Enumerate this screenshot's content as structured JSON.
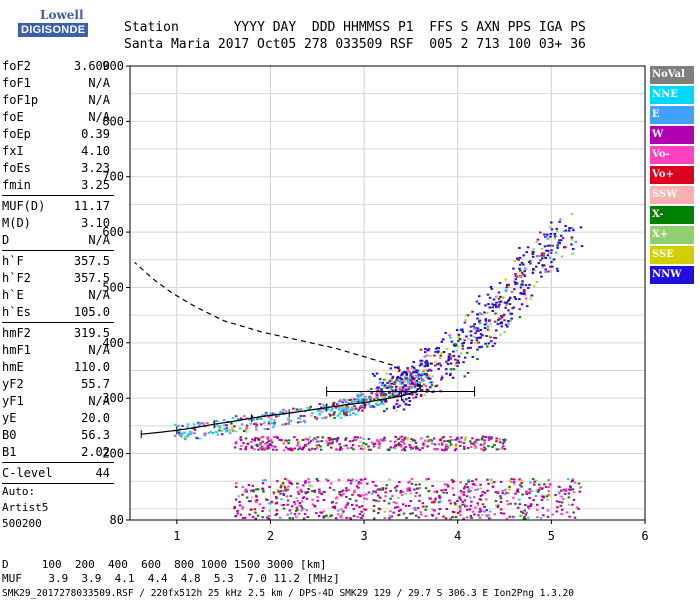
{
  "logo": {
    "line1": "Lowell",
    "line2": "DIGISONDE"
  },
  "header": {
    "cols": [
      "Station",
      "YYYY DAY",
      "DDD HHMMSS",
      "P1",
      "FFS",
      "S",
      "AXN",
      "PPS",
      "IGA",
      "PS"
    ],
    "vals": [
      "Santa Maria",
      "2017 Oct05",
      "278 033509",
      "RSF",
      "005",
      "2",
      "713",
      "100",
      "03+",
      "36"
    ]
  },
  "params": [
    {
      "name": "foF2",
      "value": "3.600"
    },
    {
      "name": "foF1",
      "value": "N/A"
    },
    {
      "name": "foF1p",
      "value": "N/A"
    },
    {
      "name": "foE",
      "value": "N/A"
    },
    {
      "name": "foEp",
      "value": "0.39"
    },
    {
      "name": "fxI",
      "value": "4.10"
    },
    {
      "name": "foEs",
      "value": "3.23"
    },
    {
      "name": "fmin",
      "value": "3.25",
      "sep": true
    },
    {
      "name": "MUF(D)",
      "value": "11.17"
    },
    {
      "name": "M(D)",
      "value": "3.10"
    },
    {
      "name": "D",
      "value": "N/A",
      "sep": true
    },
    {
      "name": "h`F",
      "value": "357.5"
    },
    {
      "name": "h`F2",
      "value": "357.5"
    },
    {
      "name": "h`E",
      "value": "N/A"
    },
    {
      "name": "h`Es",
      "value": "105.0",
      "sep": true
    },
    {
      "name": "hmF2",
      "value": "319.5"
    },
    {
      "name": "hmF1",
      "value": "N/A"
    },
    {
      "name": "hmE",
      "value": "110.0"
    },
    {
      "name": "yF2",
      "value": "55.7"
    },
    {
      "name": "yF1",
      "value": "N/A"
    },
    {
      "name": "yE",
      "value": "20.0"
    },
    {
      "name": "B0",
      "value": "56.3"
    },
    {
      "name": "B1",
      "value": "2.02",
      "sep": true
    },
    {
      "name": "C-level",
      "value": "44",
      "sep": true
    }
  ],
  "auto": {
    "l1": "Auto:",
    "l2": "Artist5",
    "l3": "500200"
  },
  "legend": [
    {
      "label": "NoVal",
      "color": "#7f7f7f"
    },
    {
      "label": "NNE",
      "color": "#00d8ff"
    },
    {
      "label": "E",
      "color": "#40a0ff"
    },
    {
      "label": "W",
      "color": "#b000b0"
    },
    {
      "label": "Vo-",
      "color": "#ff40c0"
    },
    {
      "label": "Vo+",
      "color": "#e00020"
    },
    {
      "label": "SSW",
      "color": "#f8b0b0"
    },
    {
      "label": "X-",
      "color": "#008000"
    },
    {
      "label": "X+",
      "color": "#90d070"
    },
    {
      "label": "SSE",
      "color": "#d0d000"
    },
    {
      "label": "NNW",
      "color": "#2010e0"
    }
  ],
  "bottom": {
    "d_line": "D     100  200  400  600  800 1000 1500 3000 [km]",
    "muf_line": "MUF    3.9  3.9  4.1  4.4  4.8  5.3  7.0 11.2 [MHz]",
    "footer": "SMK29_2017278033509.RSF / 220fx512h 25 kHz 2.5 km / DPS-4D SMK29 129 / 29.7 S 306.3 E Ion2Png 1.3.20"
  },
  "chart_data": {
    "type": "scatter",
    "xlim": [
      0.5,
      6.0
    ],
    "ylim": [
      80,
      900
    ],
    "xticks": [
      1,
      2,
      3,
      4,
      5,
      6
    ],
    "yticks": [
      80,
      200,
      300,
      400,
      500,
      600,
      700,
      800,
      900
    ],
    "grid": true,
    "profile_solid": {
      "x": [
        0.62,
        0.8,
        1.0,
        1.2,
        1.4,
        1.6,
        1.8,
        2.0,
        2.2,
        2.4,
        2.6,
        2.8,
        3.0,
        3.2,
        3.4,
        3.55,
        3.6
      ],
      "y": [
        235,
        238,
        242,
        247,
        253,
        258,
        264,
        269,
        273,
        278,
        283,
        288,
        292,
        298,
        304,
        312,
        319.5
      ]
    },
    "profile_dashed": {
      "x": [
        3.6,
        3.5,
        3.3,
        3.0,
        2.7,
        2.3,
        1.9,
        1.5,
        1.2,
        0.95,
        0.75,
        0.55
      ],
      "y": [
        319.5,
        340,
        360,
        375,
        390,
        405,
        420,
        440,
        465,
        490,
        515,
        545
      ]
    },
    "error_bar": {
      "xmin": 2.6,
      "xmax": 4.18,
      "y": 312
    },
    "echo_bands": [
      {
        "name": "F-trace",
        "x": [
          1.0,
          1.5,
          2.0,
          2.5,
          2.8,
          3.0,
          3.2,
          3.4,
          3.6,
          3.8,
          4.0,
          4.2,
          4.4,
          4.6,
          4.8,
          5.0,
          5.2
        ],
        "y": [
          240,
          250,
          262,
          275,
          285,
          295,
          310,
          325,
          340,
          360,
          385,
          420,
          460,
          500,
          540,
          575,
          610
        ]
      },
      {
        "name": "Es-first",
        "x": [
          1.6,
          4.5
        ],
        "y": [
          220,
          220
        ]
      },
      {
        "name": "Es-low",
        "x": [
          1.6,
          5.3
        ],
        "y": [
          120,
          120
        ]
      }
    ]
  }
}
